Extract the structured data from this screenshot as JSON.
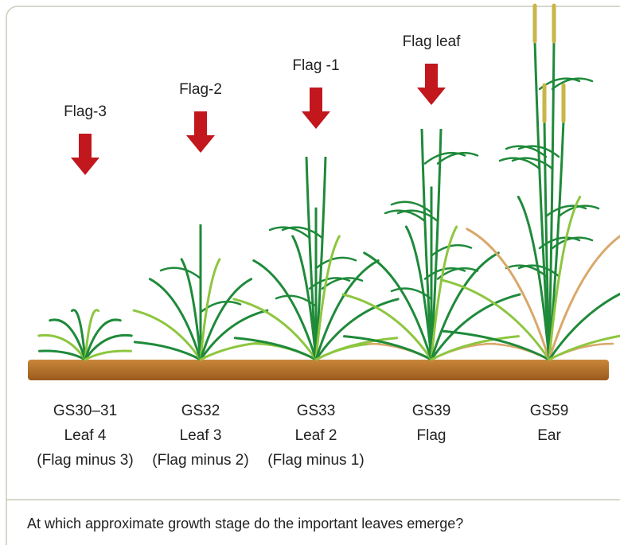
{
  "stages": [
    {
      "arrow_label": "Flag-3",
      "growth_stage": "GS30–31",
      "leaf": "Leaf 4",
      "note": "(Flag minus 3)"
    },
    {
      "arrow_label": "Flag-2",
      "growth_stage": "GS32",
      "leaf": "Leaf 3",
      "note": "(Flag minus 2)"
    },
    {
      "arrow_label": "Flag -1",
      "growth_stage": "GS33",
      "leaf": "Leaf 2",
      "note": "(Flag minus 1)"
    },
    {
      "arrow_label": "Flag leaf",
      "growth_stage": "GS39",
      "leaf": "Flag"
    },
    {
      "growth_stage": "GS59",
      "leaf": "Ear"
    }
  ],
  "caption": "At which approximate growth stage do the important leaves emerge?"
}
